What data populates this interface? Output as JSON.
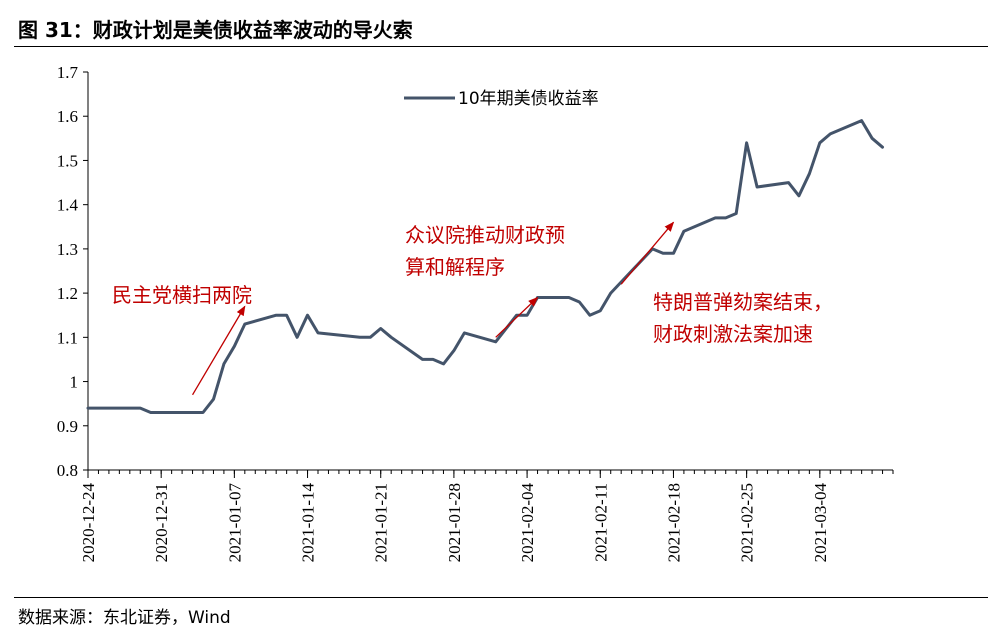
{
  "title": "图 31：财政计划是美债收益率波动的导火索",
  "source": "数据来源：东北证券，Wind",
  "chart_data": {
    "type": "line",
    "ylim": [
      0.8,
      1.7
    ],
    "yticks": [
      "0.8",
      "0.9",
      "1",
      "1.1",
      "1.2",
      "1.3",
      "1.4",
      "1.5",
      "1.6",
      "1.7"
    ],
    "xlim": [
      "2020-12-24",
      "2021-03-11"
    ],
    "xticks": [
      "2020-12-24",
      "2020-12-31",
      "2021-01-07",
      "2021-01-14",
      "2021-01-21",
      "2021-01-28",
      "2021-02-04",
      "2021-02-11",
      "2021-02-18",
      "2021-02-25",
      "2021-03-04"
    ],
    "legend": "top-center",
    "line_color": "#44546a",
    "annotation_color": "#c00000",
    "series": [
      {
        "name": "10年期美债收益率",
        "x": [
          "2020-12-24",
          "2020-12-28",
          "2020-12-29",
          "2020-12-30",
          "2020-12-31",
          "2021-01-04",
          "2021-01-05",
          "2021-01-06",
          "2021-01-07",
          "2021-01-08",
          "2021-01-11",
          "2021-01-12",
          "2021-01-13",
          "2021-01-14",
          "2021-01-15",
          "2021-01-19",
          "2021-01-20",
          "2021-01-21",
          "2021-01-22",
          "2021-01-25",
          "2021-01-26",
          "2021-01-27",
          "2021-01-28",
          "2021-01-29",
          "2021-02-01",
          "2021-02-02",
          "2021-02-03",
          "2021-02-04",
          "2021-02-05",
          "2021-02-08",
          "2021-02-09",
          "2021-02-10",
          "2021-02-11",
          "2021-02-12",
          "2021-02-16",
          "2021-02-17",
          "2021-02-18",
          "2021-02-19",
          "2021-02-22",
          "2021-02-23",
          "2021-02-24",
          "2021-02-25",
          "2021-02-26",
          "2021-03-01",
          "2021-03-02",
          "2021-03-03",
          "2021-03-04",
          "2021-03-05",
          "2021-03-08",
          "2021-03-09",
          "2021-03-10"
        ],
        "values": [
          0.94,
          0.94,
          0.94,
          0.93,
          0.93,
          0.93,
          0.96,
          1.04,
          1.08,
          1.13,
          1.15,
          1.15,
          1.1,
          1.15,
          1.11,
          1.1,
          1.1,
          1.12,
          1.1,
          1.05,
          1.05,
          1.04,
          1.07,
          1.11,
          1.09,
          1.12,
          1.15,
          1.15,
          1.19,
          1.19,
          1.18,
          1.15,
          1.16,
          1.2,
          1.3,
          1.29,
          1.29,
          1.34,
          1.37,
          1.37,
          1.38,
          1.54,
          1.44,
          1.45,
          1.42,
          1.47,
          1.54,
          1.56,
          1.59,
          1.55,
          1.53
        ]
      }
    ],
    "annotations": [
      {
        "text": [
          "民主党横扫两院"
        ],
        "arrow_from": [
          "2021-01-03",
          0.97
        ],
        "arrow_to": [
          "2021-01-08",
          1.17
        ]
      },
      {
        "text": [
          "众议院推动财政预",
          "算和解程序"
        ],
        "arrow_from": [
          "2021-02-01",
          1.1
        ],
        "arrow_to": [
          "2021-02-05",
          1.19
        ]
      },
      {
        "text": [
          "特朗普弹劾案结束，",
          "财政刺激法案加速"
        ],
        "arrow_from": [
          "2021-02-13",
          1.22
        ],
        "arrow_to": [
          "2021-02-18",
          1.36
        ]
      }
    ]
  }
}
